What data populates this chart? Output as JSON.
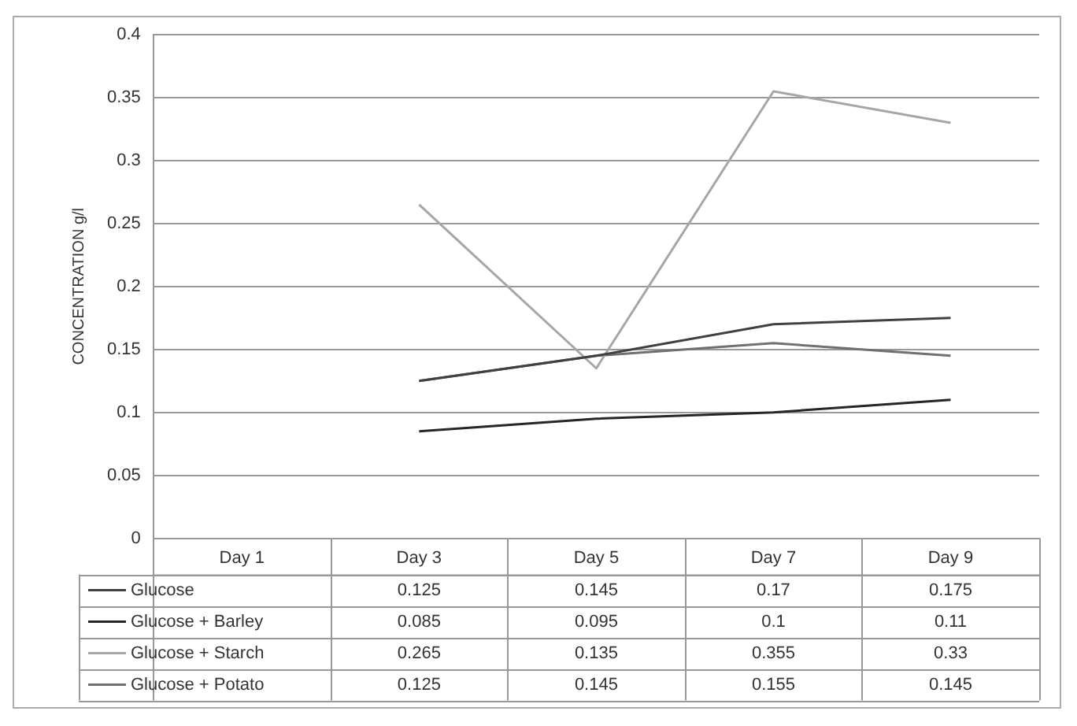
{
  "chart_data": {
    "type": "line",
    "ylabel": "CONCENTRATION g/l",
    "categories": [
      "Day 1",
      "Day 3",
      "Day 5",
      "Day 7",
      "Day 9"
    ],
    "series": [
      {
        "name": "Glucose",
        "color": "#404040",
        "values": [
          null,
          0.125,
          0.145,
          0.17,
          0.175
        ]
      },
      {
        "name": "Glucose + Barley",
        "color": "#262626",
        "values": [
          null,
          0.085,
          0.095,
          0.1,
          0.11
        ]
      },
      {
        "name": "Glucose + Starch",
        "color": "#a6a6a6",
        "values": [
          null,
          0.265,
          0.135,
          0.355,
          0.33
        ]
      },
      {
        "name": "Glucose + Potato",
        "color": "#707070",
        "values": [
          null,
          0.125,
          0.145,
          0.155,
          0.145
        ]
      }
    ],
    "ylim": [
      0,
      0.4
    ],
    "yticks": [
      0,
      0.05,
      0.1,
      0.15,
      0.2,
      0.25,
      0.3,
      0.35,
      0.4
    ],
    "grid": "y",
    "legend": "bottom",
    "data_labels": true,
    "marker": "none",
    "line_style": "solid"
  }
}
